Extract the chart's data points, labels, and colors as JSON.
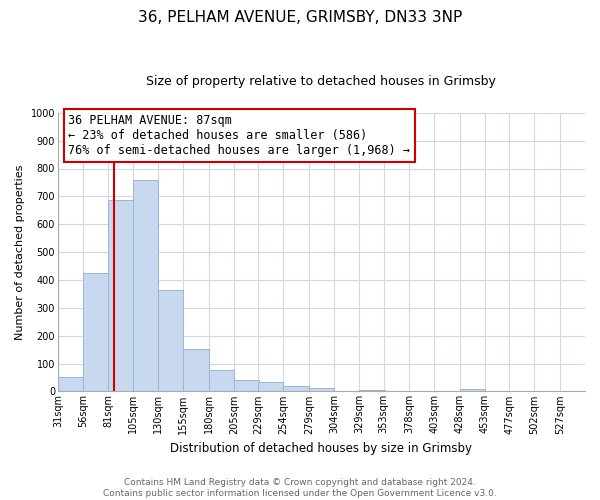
{
  "title1": "36, PELHAM AVENUE, GRIMSBY, DN33 3NP",
  "title2": "Size of property relative to detached houses in Grimsby",
  "xlabel": "Distribution of detached houses by size in Grimsby",
  "ylabel": "Number of detached properties",
  "bin_labels": [
    "31sqm",
    "56sqm",
    "81sqm",
    "105sqm",
    "130sqm",
    "155sqm",
    "180sqm",
    "205sqm",
    "229sqm",
    "254sqm",
    "279sqm",
    "304sqm",
    "329sqm",
    "353sqm",
    "378sqm",
    "403sqm",
    "428sqm",
    "453sqm",
    "477sqm",
    "502sqm",
    "527sqm"
  ],
  "bar_heights": [
    52,
    425,
    688,
    757,
    363,
    153,
    77,
    40,
    33,
    18,
    12,
    0,
    5,
    0,
    0,
    0,
    8,
    0,
    0,
    0,
    0
  ],
  "bar_color": "#c8d9ef",
  "bar_edge_color": "#9ab5d8",
  "vline_x": 87,
  "vline_color": "#cc0000",
  "ylim": [
    0,
    1000
  ],
  "yticks": [
    0,
    100,
    200,
    300,
    400,
    500,
    600,
    700,
    800,
    900,
    1000
  ],
  "annotation_title": "36 PELHAM AVENUE: 87sqm",
  "annotation_line1": "← 23% of detached houses are smaller (586)",
  "annotation_line2": "76% of semi-detached houses are larger (1,968) →",
  "footer_line1": "Contains HM Land Registry data © Crown copyright and database right 2024.",
  "footer_line2": "Contains public sector information licensed under the Open Government Licence v3.0.",
  "bin_starts": [
    31,
    56,
    81,
    105,
    130,
    155,
    180,
    205,
    229,
    254,
    279,
    304,
    329,
    353,
    378,
    403,
    428,
    453,
    477,
    502,
    527
  ],
  "bin_width": 25,
  "xlim_left": 31,
  "xlim_right": 552,
  "grid_color": "#d0d8e8",
  "title1_fontsize": 11,
  "title2_fontsize": 9,
  "ylabel_fontsize": 8,
  "xlabel_fontsize": 8.5,
  "tick_fontsize": 7,
  "annot_fontsize": 8.5,
  "footer_fontsize": 6.5,
  "footer_color": "#666666"
}
